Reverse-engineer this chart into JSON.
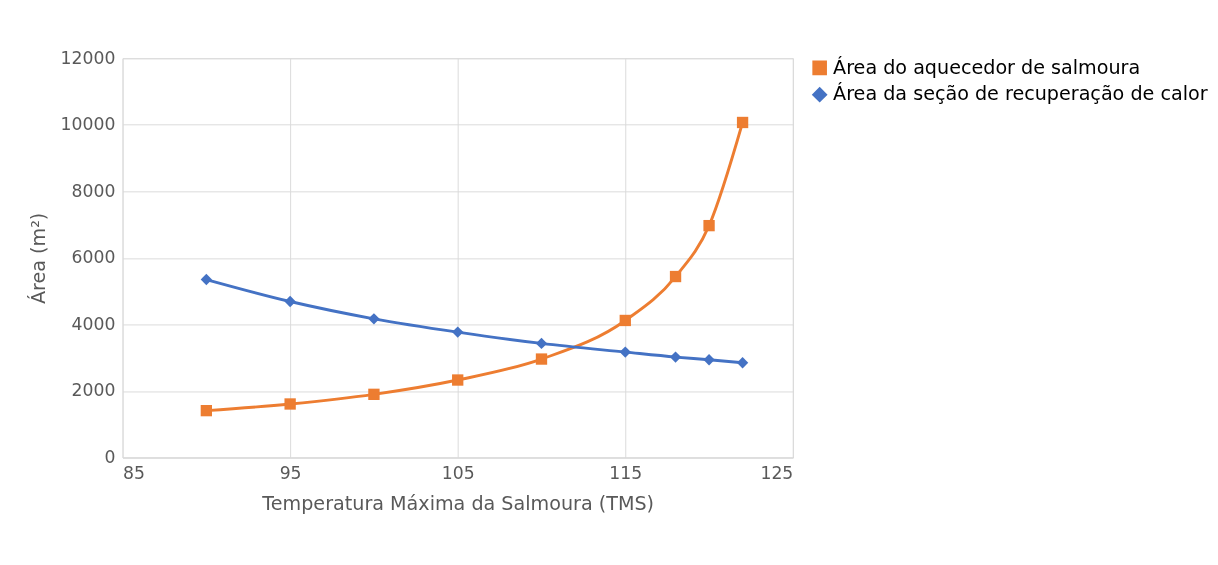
{
  "chart_data": {
    "type": "line",
    "xlabel": "Temperatura Máxima da Salmoura (TMS)",
    "ylabel": "Área (m²)",
    "x": [
      90,
      95,
      100,
      105,
      110,
      115,
      118,
      120,
      122
    ],
    "series": [
      {
        "name": "Área do aquecedor de salmoura",
        "color": "#ed7d31",
        "marker": "square",
        "values": [
          1410,
          1610,
          1900,
          2330,
          2960,
          4120,
          5440,
          6970,
          10070
        ]
      },
      {
        "name": "Área da seção de recuperação de calor",
        "color": "#4472c4",
        "marker": "diamond",
        "values": [
          5350,
          4690,
          4170,
          3770,
          3430,
          3170,
          3020,
          2940,
          2850
        ]
      }
    ],
    "xlim": [
      85,
      125
    ],
    "xticks": [
      85,
      95,
      105,
      115,
      125
    ],
    "ylim": [
      0,
      12000
    ],
    "yticks": [
      0,
      2000,
      4000,
      6000,
      8000,
      10000,
      12000
    ],
    "grid": true,
    "legend": "right",
    "line_style": "solid"
  }
}
